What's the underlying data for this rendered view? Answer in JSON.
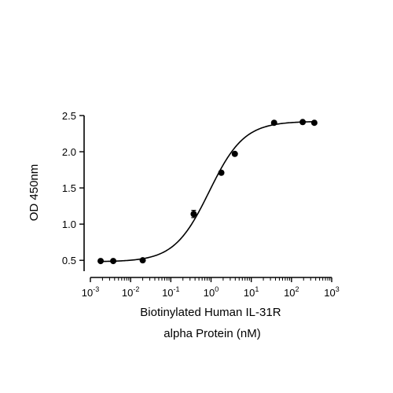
{
  "chart_data": {
    "type": "scatter",
    "xscale": "log",
    "xlim": [
      0.001,
      1000
    ],
    "ylim": [
      0.35,
      2.5
    ],
    "x_ticks": [
      {
        "value": 0.001,
        "base": "10",
        "exp": "-3"
      },
      {
        "value": 0.01,
        "base": "10",
        "exp": "-2"
      },
      {
        "value": 0.1,
        "base": "10",
        "exp": "-1"
      },
      {
        "value": 1,
        "base": "10",
        "exp": "0"
      },
      {
        "value": 10,
        "base": "10",
        "exp": "1"
      },
      {
        "value": 100,
        "base": "10",
        "exp": "2"
      },
      {
        "value": 1000,
        "base": "10",
        "exp": "3"
      }
    ],
    "y_ticks": [
      {
        "value": 0.5,
        "label": "0.5"
      },
      {
        "value": 1.0,
        "label": "1.0"
      },
      {
        "value": 1.5,
        "label": "1.5"
      },
      {
        "value": 2.0,
        "label": "2.0"
      },
      {
        "value": 2.5,
        "label": "2.5"
      }
    ],
    "xlabel_lines": [
      "Biotinylated Human IL-31R",
      "alpha Protein (nM)"
    ],
    "ylabel": "OD 450nm",
    "grid": false,
    "series": [
      {
        "points": [
          {
            "x": 0.0018,
            "y": 0.49
          },
          {
            "x": 0.0037,
            "y": 0.49
          },
          {
            "x": 0.02,
            "y": 0.5
          },
          {
            "x": 0.37,
            "y": 1.14,
            "err": 0.05
          },
          {
            "x": 1.8,
            "y": 1.71
          },
          {
            "x": 3.9,
            "y": 1.97
          },
          {
            "x": 37,
            "y": 2.4
          },
          {
            "x": 190,
            "y": 2.41
          },
          {
            "x": 370,
            "y": 2.4
          }
        ],
        "fit": {
          "model": "4PL",
          "bottom": 0.48,
          "top": 2.42,
          "ec50": 0.9,
          "hill": 1.0
        }
      }
    ]
  }
}
